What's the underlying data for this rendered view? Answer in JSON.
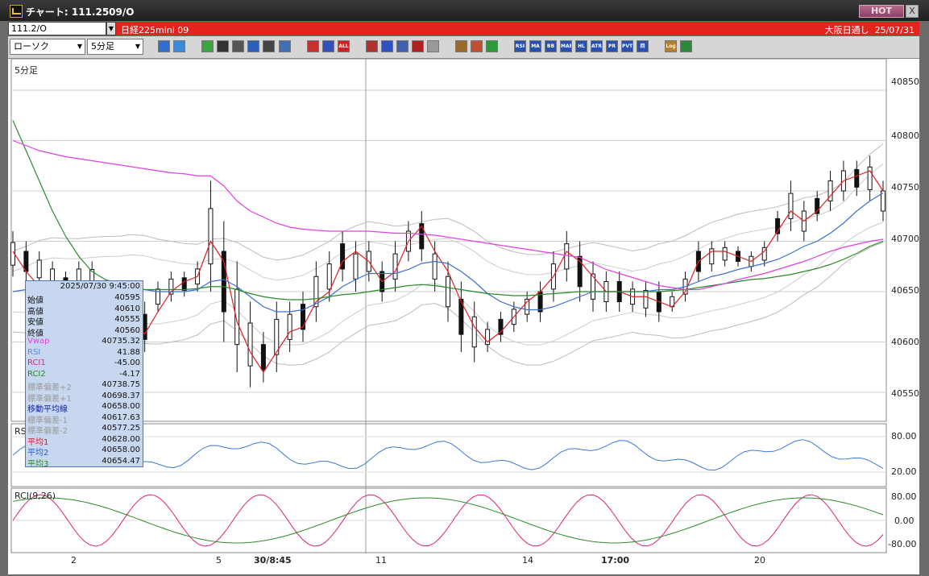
{
  "window": {
    "title": "チャート: 111.2509/O",
    "hot_label": "HOT",
    "close_label": "X"
  },
  "infobar": {
    "symbol_code": "111.2/O",
    "symbol_name": "日経225mini 09",
    "session": "大阪日通し",
    "date": "25/07/31"
  },
  "toolbar": {
    "chart_type": "ローソク",
    "timeframe": "5分足",
    "buttons": [
      {
        "name": "zoom-icon",
        "label": "",
        "color": "#2f6fd0"
      },
      {
        "name": "window-icon",
        "label": "",
        "color": "#3a8ad8"
      },
      {
        "name": "pencil-icon",
        "label": "",
        "color": "#3aa640"
      },
      {
        "name": "line-tool-icon",
        "label": "",
        "color": "#333333"
      },
      {
        "name": "cursor-icon",
        "label": "",
        "color": "#555555"
      },
      {
        "name": "undo-icon",
        "label": "",
        "color": "#2b5fb8"
      },
      {
        "name": "print-icon",
        "label": "",
        "color": "#444444"
      },
      {
        "name": "trash-icon",
        "label": "",
        "color": "#3f6fb0"
      },
      {
        "name": "candle-red-icon",
        "label": "",
        "color": "#c83030"
      },
      {
        "name": "candle-blue-icon",
        "label": "",
        "color": "#3050c0"
      },
      {
        "name": "all-button",
        "label": "ALL",
        "color": "#d02020"
      },
      {
        "name": "marker-icon",
        "label": "",
        "color": "#b03030"
      },
      {
        "name": "search-chart-icon",
        "label": "",
        "color": "#3050c0"
      },
      {
        "name": "bars-icon",
        "label": "",
        "color": "#4060b0"
      },
      {
        "name": "split-icon",
        "label": "",
        "color": "#b02020"
      },
      {
        "name": "disabled-icon",
        "label": "",
        "color": "#9a9a9a"
      },
      {
        "name": "gear-icon",
        "label": "",
        "color": "#9a6a2a"
      },
      {
        "name": "wrench-icon",
        "label": "",
        "color": "#c05030"
      },
      {
        "name": "palette-icon",
        "label": "",
        "color": "#2a9a3a"
      },
      {
        "name": "rsi-button",
        "label": "RSI",
        "color": "#2850b0"
      },
      {
        "name": "ma-button",
        "label": "MA",
        "color": "#2850b0"
      },
      {
        "name": "bb-button",
        "label": "BB",
        "color": "#2850b0"
      },
      {
        "name": "mae-button",
        "label": "MAE",
        "color": "#2850b0"
      },
      {
        "name": "hl-button",
        "label": "HL",
        "color": "#2850b0"
      },
      {
        "name": "atr-button",
        "label": "ATR",
        "color": "#2850b0"
      },
      {
        "name": "pr-button",
        "label": "PR",
        "color": "#2850b0"
      },
      {
        "name": "pvt-button",
        "label": "PVT",
        "color": "#2850b0"
      },
      {
        "name": "kai-button",
        "label": "回",
        "color": "#2850b0"
      },
      {
        "name": "log-button",
        "label": "Log",
        "color": "#b08030"
      },
      {
        "name": "exit-icon",
        "label": "",
        "color": "#2a8a3a"
      }
    ]
  },
  "chart": {
    "timeframe_label": "5分足",
    "crosshair_x_label": "30/8:45",
    "x_labels": [
      "2",
      "5",
      "30/8:45",
      "11",
      "14",
      "17:00",
      "20"
    ],
    "price_ticks": [
      "40850",
      "40800",
      "40750",
      "40700",
      "40650",
      "40600",
      "40550"
    ],
    "rsi_title": "RS",
    "rsi_ticks": [
      "80.00",
      "20.00"
    ],
    "rci_title": "RCI(9,26)",
    "rci_ticks": [
      "80.00",
      "0.00",
      "-80.00"
    ]
  },
  "infobox": {
    "datetime": "2025/07/30 9:45:00",
    "rows": [
      {
        "label": "始値",
        "value": "40595",
        "color": "#111111"
      },
      {
        "label": "高値",
        "value": "40610",
        "color": "#111111"
      },
      {
        "label": "安値",
        "value": "40555",
        "color": "#111111"
      },
      {
        "label": "終値",
        "value": "40560",
        "color": "#111111"
      },
      {
        "label": "Vwap",
        "value": "40735.32",
        "color": "#e040e0"
      },
      {
        "label": "RSI",
        "value": "41.88",
        "color": "#5a8ad8"
      },
      {
        "label": "RCI1",
        "value": "-45.00",
        "color": "#e0208a"
      },
      {
        "label": "RCI2",
        "value": "-4.17",
        "color": "#2a8a2a"
      },
      {
        "label": "標準偏差+2",
        "value": "40738.75",
        "color": "#9a9a9a"
      },
      {
        "label": "標準偏差+1",
        "value": "40698.37",
        "color": "#9a9a9a"
      },
      {
        "label": "移動平均線",
        "value": "40658.00",
        "color": "#1a2aa0"
      },
      {
        "label": "標準偏差-1",
        "value": "40617.63",
        "color": "#9a9a9a"
      },
      {
        "label": "標準偏差-2",
        "value": "40577.25",
        "color": "#9a9a9a"
      },
      {
        "label": "平均1",
        "value": "40628.00",
        "color": "#d02020"
      },
      {
        "label": "平均2",
        "value": "40658.00",
        "color": "#2a60d0"
      },
      {
        "label": "平均3",
        "value": "40654.47",
        "color": "#2a8a2a"
      }
    ]
  },
  "chart_data": {
    "type": "line",
    "price_axis_ticks": [
      40850,
      40800,
      40750,
      40700,
      40650,
      40600,
      40550
    ],
    "ylim": [
      40510,
      40870
    ],
    "x_tick_labels": [
      "2",
      "5",
      "30/8:45",
      "11",
      "14",
      "17:00",
      "20"
    ],
    "series": [
      {
        "name": "平均1",
        "color": "#e02020",
        "values": [
          40690,
          40670,
          40655,
          40640,
          40638,
          40645,
          40650,
          40648,
          40640,
          40620,
          40608,
          40630,
          40650,
          40660,
          40665,
          40700,
          40680,
          40620,
          40590,
          40570,
          40590,
          40610,
          40615,
          40640,
          40650,
          40680,
          40690,
          40680,
          40660,
          40670,
          40700,
          40715,
          40690,
          40670,
          40640,
          40615,
          40600,
          40610,
          40625,
          40640,
          40650,
          40665,
          40690,
          40680,
          40665,
          40650,
          40650,
          40645,
          40645,
          40640,
          40635,
          40650,
          40680,
          40690,
          40690,
          40685,
          40680,
          40690,
          40710,
          40730,
          40720,
          40730,
          40745,
          40760,
          40765,
          40770,
          40750
        ]
      },
      {
        "name": "平均2",
        "color": "#3a70d0",
        "values": [
          40650,
          40652,
          40655,
          40655,
          40652,
          40650,
          40650,
          40650,
          40650,
          40652,
          40652,
          40650,
          40650,
          40650,
          40652,
          40660,
          40662,
          40655,
          40645,
          40635,
          40630,
          40630,
          40632,
          40638,
          40645,
          40655,
          40662,
          40668,
          40668,
          40668,
          40672,
          40678,
          40680,
          40678,
          40670,
          40660,
          40648,
          40640,
          40635,
          40632,
          40632,
          40635,
          40640,
          40645,
          40650,
          40650,
          40650,
          40650,
          40650,
          40652,
          40652,
          40655,
          40660,
          40665,
          40668,
          40672,
          40675,
          40678,
          40682,
          40688,
          40695,
          40700,
          40708,
          40718,
          40730,
          40740,
          40748
        ]
      },
      {
        "name": "平均3",
        "color": "#2a8a2a",
        "values": [
          40820,
          40790,
          40760,
          40730,
          40705,
          40685,
          40670,
          40662,
          40658,
          40655,
          40652,
          40652,
          40652,
          40652,
          40653,
          40655,
          40655,
          40652,
          40648,
          40645,
          40643,
          40642,
          40642,
          40643,
          40645,
          40647,
          40648,
          40650,
          40652,
          40654,
          40656,
          40657,
          40656,
          40654,
          40652,
          40650,
          40648,
          40647,
          40646,
          40646,
          40647,
          40648,
          40649,
          40650,
          40650,
          40650,
          40650,
          40650,
          40650,
          40650,
          40651,
          40652,
          40654,
          40656,
          40658,
          40660,
          40662,
          40663,
          40665,
          40667,
          40670,
          40673,
          40677,
          40682,
          40688,
          40695,
          40700
        ]
      },
      {
        "name": "Vwap",
        "color": "#e040e0",
        "values": [
          40800,
          40795,
          40790,
          40787,
          40784,
          40782,
          40780,
          40778,
          40776,
          40774,
          40772,
          40770,
          40768,
          40767,
          40765,
          40765,
          40755,
          40740,
          40730,
          40724,
          40718,
          40714,
          40712,
          40711,
          40710,
          40710,
          40710,
          40710,
          40709,
          40708,
          40708,
          40707,
          40706,
          40704,
          40702,
          40700,
          40698,
          40696,
          40694,
          40692,
          40690,
          40688,
          40686,
          40684,
          40678,
          40672,
          40668,
          40664,
          40660,
          40656,
          40654,
          40652,
          40652,
          40655,
          40658,
          40662,
          40665,
          40668,
          40672,
          40676,
          40680,
          40685,
          40690,
          40694,
          40697,
          40700,
          40702
        ]
      }
    ],
    "candles_hl": [
      [
        40710,
        40665
      ],
      [
        40700,
        40660
      ],
      [
        40690,
        40655
      ],
      [
        40680,
        40650
      ],
      [
        40670,
        40645
      ],
      [
        40680,
        40650
      ],
      [
        40680,
        40648
      ],
      [
        40660,
        40640
      ],
      [
        40660,
        40640
      ],
      [
        40650,
        40585
      ],
      [
        40640,
        40590
      ],
      [
        40660,
        40630
      ],
      [
        40670,
        40640
      ],
      [
        40670,
        40645
      ],
      [
        40680,
        40650
      ],
      [
        40760,
        40650
      ],
      [
        40720,
        40600
      ],
      [
        40680,
        40570
      ],
      [
        40640,
        40555
      ],
      [
        40610,
        40560
      ],
      [
        40640,
        40570
      ],
      [
        40640,
        40590
      ],
      [
        40650,
        40600
      ],
      [
        40680,
        40620
      ],
      [
        40690,
        40640
      ],
      [
        40710,
        40660
      ],
      [
        40700,
        40650
      ],
      [
        40700,
        40660
      ],
      [
        40680,
        40640
      ],
      [
        40700,
        40650
      ],
      [
        40720,
        40680
      ],
      [
        40730,
        40680
      ],
      [
        40700,
        40650
      ],
      [
        40680,
        40620
      ],
      [
        40660,
        40590
      ],
      [
        40640,
        40580
      ],
      [
        40620,
        40590
      ],
      [
        40630,
        40600
      ],
      [
        40640,
        40610
      ],
      [
        40650,
        40620
      ],
      [
        40660,
        40620
      ],
      [
        40690,
        40640
      ],
      [
        40710,
        40660
      ],
      [
        40700,
        40640
      ],
      [
        40680,
        40630
      ],
      [
        40670,
        40630
      ],
      [
        40670,
        40630
      ],
      [
        40660,
        40630
      ],
      [
        40660,
        40625
      ],
      [
        40660,
        40620
      ],
      [
        40650,
        40630
      ],
      [
        40670,
        40640
      ],
      [
        40700,
        40660
      ],
      [
        40700,
        40670
      ],
      [
        40700,
        40675
      ],
      [
        40695,
        40675
      ],
      [
        40690,
        40670
      ],
      [
        40700,
        40675
      ],
      [
        40730,
        40700
      ],
      [
        40760,
        40710
      ],
      [
        40740,
        40700
      ],
      [
        40750,
        40720
      ],
      [
        40770,
        40730
      ],
      [
        40780,
        40740
      ],
      [
        40780,
        40745
      ],
      [
        40785,
        40740
      ],
      [
        40760,
        40720
      ]
    ]
  }
}
